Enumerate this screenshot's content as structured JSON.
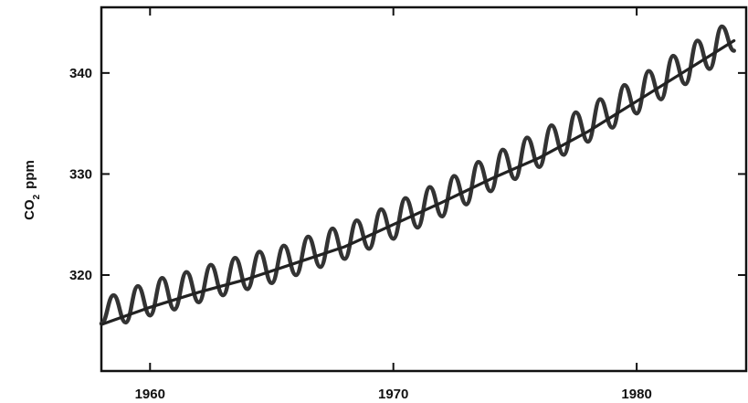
{
  "chart_data": {
    "type": "line",
    "title": "",
    "ylabel_main": "CO",
    "ylabel_sub": "2",
    "ylabel_unit": "ppm",
    "xlabel": "",
    "xlim": [
      1958.0,
      1984.5
    ],
    "ylim": [
      310.5,
      346.5
    ],
    "grid": false,
    "legend": "none",
    "x_ticks": [
      1960,
      1970,
      1980
    ],
    "x_tick_labels": [
      "1960",
      "1970",
      "1980"
    ],
    "y_ticks": [
      320,
      330,
      340
    ],
    "y_tick_labels": [
      "320",
      "330",
      "340"
    ],
    "series": [
      {
        "kind": "monthly",
        "x": [
          1958.0,
          1958.5,
          1959.0,
          1959.5,
          1960.0,
          1960.5,
          1961.0,
          1961.5,
          1962.0,
          1962.5,
          1963.0,
          1963.5,
          1964.0,
          1964.5,
          1965.0,
          1965.5,
          1966.0,
          1966.5,
          1967.0,
          1967.5,
          1968.0,
          1968.5,
          1969.0,
          1969.5,
          1970.0,
          1970.5,
          1971.0,
          1971.5,
          1972.0,
          1972.5,
          1973.0,
          1973.5,
          1974.0,
          1974.5,
          1975.0,
          1975.5,
          1976.0,
          1976.5,
          1977.0,
          1977.5,
          1978.0,
          1978.5,
          1979.0,
          1979.5,
          1980.0,
          1980.5,
          1981.0,
          1981.5,
          1982.0,
          1982.5,
          1983.0,
          1983.5,
          1984.0
        ],
        "y": [
          315.2,
          318.0,
          315.3,
          318.9,
          316.0,
          319.7,
          316.6,
          320.3,
          317.3,
          321.0,
          318.0,
          321.7,
          318.6,
          322.3,
          319.2,
          322.9,
          320.0,
          323.8,
          320.8,
          324.6,
          321.6,
          325.4,
          322.6,
          326.5,
          323.6,
          327.6,
          324.7,
          328.7,
          325.8,
          329.8,
          327.0,
          331.2,
          328.3,
          332.4,
          329.5,
          333.6,
          330.7,
          334.8,
          331.9,
          336.1,
          333.2,
          337.4,
          334.6,
          338.8,
          336.0,
          340.2,
          337.4,
          341.7,
          338.9,
          343.2,
          340.4,
          344.6,
          342.2
        ]
      },
      {
        "kind": "trend",
        "x": [
          1958.0,
          1960.0,
          1962.0,
          1964.0,
          1966.0,
          1968.0,
          1970.0,
          1972.0,
          1974.0,
          1976.0,
          1978.0,
          1980.0,
          1982.0,
          1984.0
        ],
        "y": [
          315.1,
          316.8,
          318.3,
          319.6,
          321.2,
          322.8,
          325.0,
          327.2,
          329.5,
          331.6,
          334.2,
          337.2,
          340.2,
          343.2
        ]
      }
    ]
  }
}
